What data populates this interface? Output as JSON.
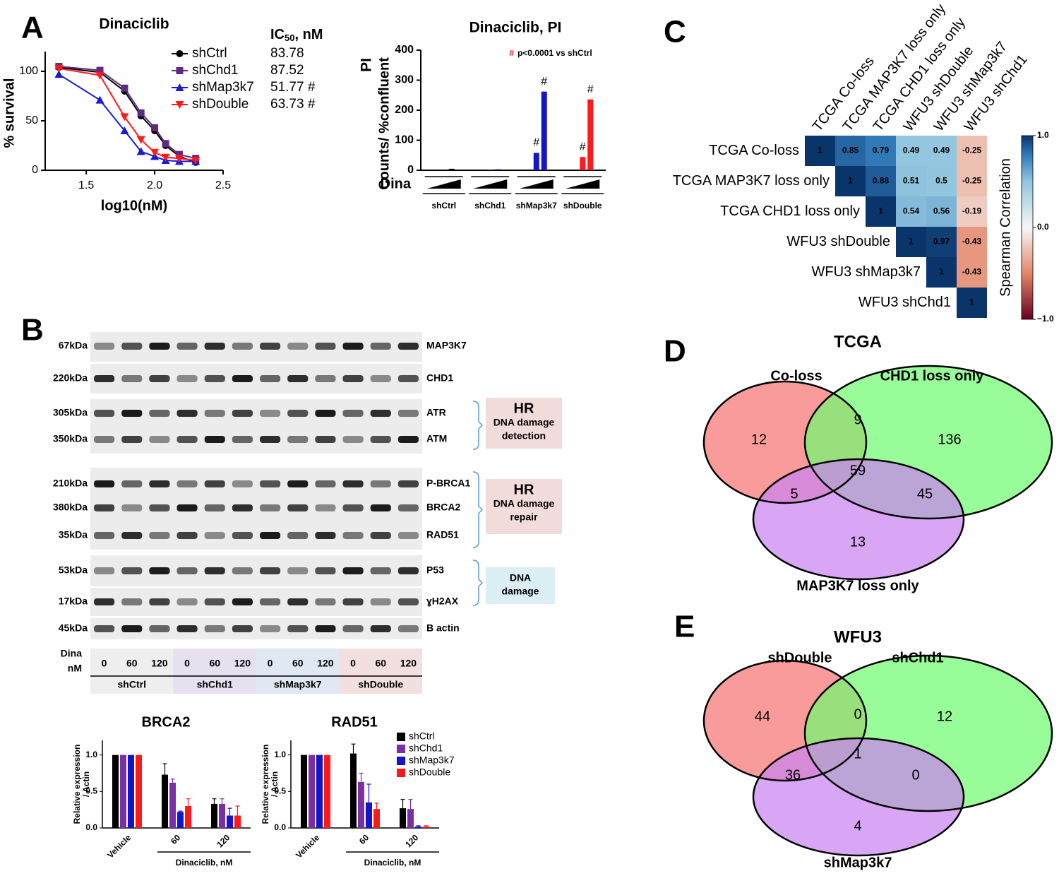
{
  "panel_labels": [
    "A",
    "B",
    "C",
    "D",
    "E"
  ],
  "chart_data": [
    {
      "type": "line",
      "title": "Dinaciclib",
      "xlabel": "log10(nM)",
      "ylabel": "% survival",
      "x": [
        1.3,
        1.6,
        1.78,
        1.9,
        2.0,
        2.08,
        2.18,
        2.3
      ],
      "xlim": [
        1.2,
        2.5
      ],
      "xticks": [
        1.5,
        {
          "value": 2,
          "label": "2.0"
        },
        2.5
      ],
      "ylim": [
        0,
        120
      ],
      "yticks": [
        0,
        50,
        100
      ],
      "ic50_header": {
        "text": "IC",
        "subscript": "50",
        "unit": ", nM"
      },
      "series": [
        {
          "name": "shCtrl",
          "color": "#000000",
          "values": [
            104,
            99,
            80,
            55,
            40,
            25,
            14,
            8
          ],
          "ic50_label": "83.78"
        },
        {
          "name": "shChd1",
          "color": "#5e2a86",
          "values": [
            105,
            101,
            83,
            58,
            43,
            27,
            16,
            12
          ],
          "ic50_label": "87.52"
        },
        {
          "name": "shMap3k7",
          "color": "#1a1ad0",
          "values": [
            97,
            71,
            40,
            19,
            14,
            10,
            9,
            9
          ],
          "ic50_label": "51.77 #"
        },
        {
          "name": "shDouble",
          "color": "#ff1a1a",
          "values": [
            103,
            96,
            54,
            31,
            18,
            13,
            12,
            10
          ],
          "ic50_label": "63.73 #"
        }
      ]
    },
    {
      "type": "bar",
      "title": "Dinaciclib, PI",
      "ylabel_title": "PI",
      "ylabel": "Counts/ %confluent",
      "annotation": {
        "symbol": "#",
        "text": "p<0.0001 vs shCtrl",
        "color": "#ff0000"
      },
      "dose_label": "Dina",
      "ylim": [
        0,
        400
      ],
      "yticks": [
        0,
        100,
        200,
        300,
        400
      ],
      "series": [
        {
          "name": "shCtrl",
          "color": "#000000",
          "values": [
            0,
            2,
            5
          ],
          "marks": [
            null,
            null,
            null
          ]
        },
        {
          "name": "shChd1",
          "color": "#7b2fa6",
          "values": [
            0,
            1,
            4
          ],
          "marks": [
            null,
            null,
            null
          ]
        },
        {
          "name": "shMap3k7",
          "color": "#1414c8",
          "values": [
            0,
            58,
            262
          ],
          "marks": [
            null,
            "#",
            "#"
          ]
        },
        {
          "name": "shDouble",
          "color": "#ff1a1a",
          "values": [
            0,
            44,
            236
          ],
          "marks": [
            null,
            "#",
            "#"
          ]
        }
      ]
    },
    {
      "type": "heatmap",
      "rows": [
        "TCGA Co-loss",
        "TCGA MAP3K7 loss only",
        "TCGA CHD1 loss only",
        "WFU3 shDouble",
        "WFU3 shMap3k7",
        "WFU3 shChd1"
      ],
      "columns": [
        "TCGA Co-loss",
        "TCGA MAP3K7 loss only",
        "TCGA CHD1 loss only",
        "WFU3 shDouble",
        "WFU3 shMap3k7",
        "WFU3 shChd1"
      ],
      "values": [
        [
          1,
          0.85,
          0.79,
          0.49,
          0.49,
          -0.25
        ],
        [
          null,
          1,
          0.88,
          0.51,
          0.5,
          -0.25
        ],
        [
          null,
          null,
          1,
          0.54,
          0.56,
          -0.19
        ],
        [
          null,
          null,
          null,
          1,
          0.97,
          -0.43
        ],
        [
          null,
          null,
          null,
          null,
          1,
          -0.43
        ],
        [
          null,
          null,
          null,
          null,
          null,
          1
        ]
      ],
      "colormap": "RdBu",
      "colorbar": {
        "label": "Spearman Correlation",
        "lim": [
          -1,
          1
        ],
        "ticks": [
          {
            "value": 1,
            "label": "1.0"
          },
          {
            "value": 0,
            "label": "0.0"
          },
          {
            "value": -1,
            "label": "−1.0"
          }
        ]
      }
    },
    {
      "type": "venn",
      "title": "TCGA",
      "sets": [
        {
          "name": "Co-loss",
          "color": "#f87474"
        },
        {
          "name": "CHD1 loss only",
          "color": "#70fb70"
        },
        {
          "name": "MAP3K7 loss only",
          "color": "#c983f0"
        }
      ],
      "regions": [
        {
          "sets": [
            0
          ],
          "value": 12
        },
        {
          "sets": [
            1
          ],
          "value": 136
        },
        {
          "sets": [
            2
          ],
          "value": 13
        },
        {
          "sets": [
            0,
            1
          ],
          "value": 9
        },
        {
          "sets": [
            0,
            2
          ],
          "value": 5
        },
        {
          "sets": [
            1,
            2
          ],
          "value": 45
        },
        {
          "sets": [
            0,
            1,
            2
          ],
          "value": 59
        }
      ]
    },
    {
      "type": "venn",
      "title": "WFU3",
      "sets": [
        {
          "name": "shDouble",
          "color": "#f87474"
        },
        {
          "name": "shChd1",
          "color": "#70fb70"
        },
        {
          "name": "shMap3k7",
          "color": "#c983f0"
        }
      ],
      "regions": [
        {
          "sets": [
            0
          ],
          "value": 44
        },
        {
          "sets": [
            1
          ],
          "value": 12
        },
        {
          "sets": [
            2
          ],
          "value": 4
        },
        {
          "sets": [
            0,
            1
          ],
          "value": 0
        },
        {
          "sets": [
            0,
            2
          ],
          "value": 36
        },
        {
          "sets": [
            1,
            2
          ],
          "value": 0
        },
        {
          "sets": [
            0,
            1,
            2
          ],
          "value": 1
        }
      ]
    },
    {
      "type": "bar",
      "title": "BRCA2",
      "categories": [
        "Vehicle",
        "60",
        "120"
      ],
      "xlabel": "Dinaciclib, nM",
      "ylabel": [
        "Relative expression",
        "/ Actin"
      ],
      "ylim": [
        0,
        1.2
      ],
      "yticks": [
        {
          "value": 0,
          "label": "0.0"
        },
        {
          "value": 0.5,
          "label": "0.5"
        },
        {
          "value": 1,
          "label": "1.0"
        }
      ],
      "series": [
        {
          "name": "shCtrl",
          "color": "#000000",
          "values": [
            1,
            0.73,
            0.33
          ],
          "errors": [
            0,
            0.15,
            0.07
          ]
        },
        {
          "name": "shChd1",
          "color": "#7b2fa6",
          "values": [
            1,
            0.62,
            0.33
          ],
          "errors": [
            0,
            0.05,
            0.07
          ]
        },
        {
          "name": "shMap3k7",
          "color": "#1414c8",
          "values": [
            1,
            0.22,
            0.17
          ],
          "errors": [
            0,
            0.01,
            0.1
          ]
        },
        {
          "name": "shDouble",
          "color": "#ff1a1a",
          "values": [
            1,
            0.3,
            0.17
          ],
          "errors": [
            0,
            0.1,
            0.13
          ]
        }
      ]
    },
    {
      "type": "bar",
      "title": "RAD51",
      "categories": [
        "Vehicle",
        "60",
        "120"
      ],
      "xlabel": "Dinaciclib, nM",
      "ylabel": [
        "Relative expression",
        "/ Actin"
      ],
      "ylim": [
        0,
        1.2
      ],
      "yticks": [
        {
          "value": 0,
          "label": "0.0"
        },
        {
          "value": 0.5,
          "label": "0.5"
        },
        {
          "value": 1,
          "label": "1.0"
        }
      ],
      "legend": "top-right",
      "series": [
        {
          "name": "shCtrl",
          "color": "#000000",
          "values": [
            1,
            1.02,
            0.27
          ],
          "errors": [
            0,
            0.13,
            0.12
          ]
        },
        {
          "name": "shChd1",
          "color": "#7b2fa6",
          "values": [
            1,
            0.63,
            0.26
          ],
          "errors": [
            0,
            0.12,
            0.13
          ]
        },
        {
          "name": "shMap3k7",
          "color": "#1414c8",
          "values": [
            1,
            0.35,
            0.02
          ],
          "errors": [
            0,
            0.25,
            0.01
          ]
        },
        {
          "name": "shDouble",
          "color": "#ff1a1a",
          "values": [
            1,
            0.26,
            0.02
          ],
          "errors": [
            0,
            0.08,
            0.01
          ]
        }
      ]
    }
  ],
  "western_blot": {
    "rows": [
      {
        "size": "67kDa",
        "protein": "MAP3K7"
      },
      {
        "size": "220kDa",
        "protein": "CHD1"
      },
      {
        "size": "305kDa",
        "protein": "ATR"
      },
      {
        "size": "350kDa",
        "protein": "ATM"
      },
      {
        "size": "210kDa",
        "protein": "P-BRCA1"
      },
      {
        "size": "380kDa",
        "protein": "BRCA2"
      },
      {
        "size": "35kDa",
        "protein": "RAD51"
      },
      {
        "size": "53kDa",
        "protein": "P53"
      },
      {
        "size": "17kDa",
        "protein": "ɣH2AX"
      },
      {
        "size": "45kDa",
        "protein": "B actin"
      }
    ],
    "boxes": [
      {
        "title": "HR",
        "lines": [
          "DNA damage",
          "detection"
        ]
      },
      {
        "title": "HR",
        "lines": [
          "DNA damage",
          "repair"
        ]
      },
      {
        "lines": [
          "DNA",
          "damage"
        ]
      }
    ],
    "dose_header": [
      "Dina",
      "nM"
    ],
    "doses": [
      0,
      60,
      120,
      0,
      60,
      120,
      0,
      60,
      120,
      0,
      60,
      120
    ],
    "groups": [
      "shCtrl",
      "shChd1",
      "shMap3k7",
      "shDouble"
    ]
  }
}
